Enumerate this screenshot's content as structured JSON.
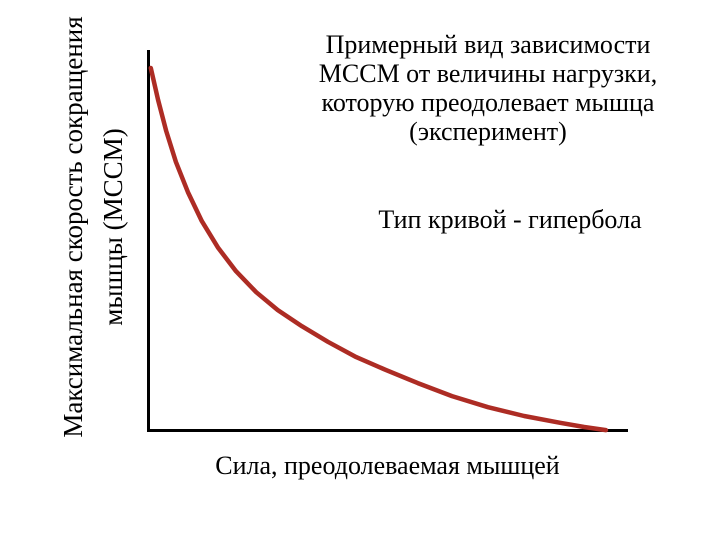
{
  "chart_data": {
    "type": "line",
    "curve_shape": "hyperbola",
    "title": "Примерный вид зависимости МССМ от величины нагрузки, которую преодолевает мышца (эксперимент)",
    "title_lines": [
      "Примерный вид зависимости",
      "МССМ от величины нагрузки,",
      "которую преодолевает мышца",
      "(эксперимент)"
    ],
    "annotation": "Тип кривой - гипербола",
    "xlabel": "Сила, преодолеваемая мышцей",
    "ylabel": "Максимальная скорость сокращения мышцы (МССМ)",
    "ylabel_lines": [
      "Максимальная скорость сокращения",
      "мышцы (МССМ)"
    ],
    "grid": false,
    "legend": false,
    "tick_labels": false,
    "axis_color": "#000000",
    "background_color": "#ffffff",
    "curve": {
      "name": "МССМ от величины нагрузки",
      "color": "#ad2c24",
      "x_axis_meaning": "Сила, преодолеваемая мышцей (условные единицы, 0-1)",
      "y_axis_meaning": "МССМ (условные единицы, 0-1)",
      "points_norm": [
        [
          0.008,
          0.953
        ],
        [
          0.023,
          0.869
        ],
        [
          0.04,
          0.788
        ],
        [
          0.06,
          0.707
        ],
        [
          0.085,
          0.628
        ],
        [
          0.114,
          0.552
        ],
        [
          0.148,
          0.482
        ],
        [
          0.185,
          0.421
        ],
        [
          0.227,
          0.366
        ],
        [
          0.272,
          0.319
        ],
        [
          0.322,
          0.277
        ],
        [
          0.376,
          0.236
        ],
        [
          0.435,
          0.196
        ],
        [
          0.497,
          0.162
        ],
        [
          0.563,
          0.128
        ],
        [
          0.634,
          0.094
        ],
        [
          0.709,
          0.065
        ],
        [
          0.784,
          0.042
        ],
        [
          0.859,
          0.024
        ],
        [
          0.909,
          0.013
        ],
        [
          0.954,
          0.005
        ]
      ]
    }
  }
}
